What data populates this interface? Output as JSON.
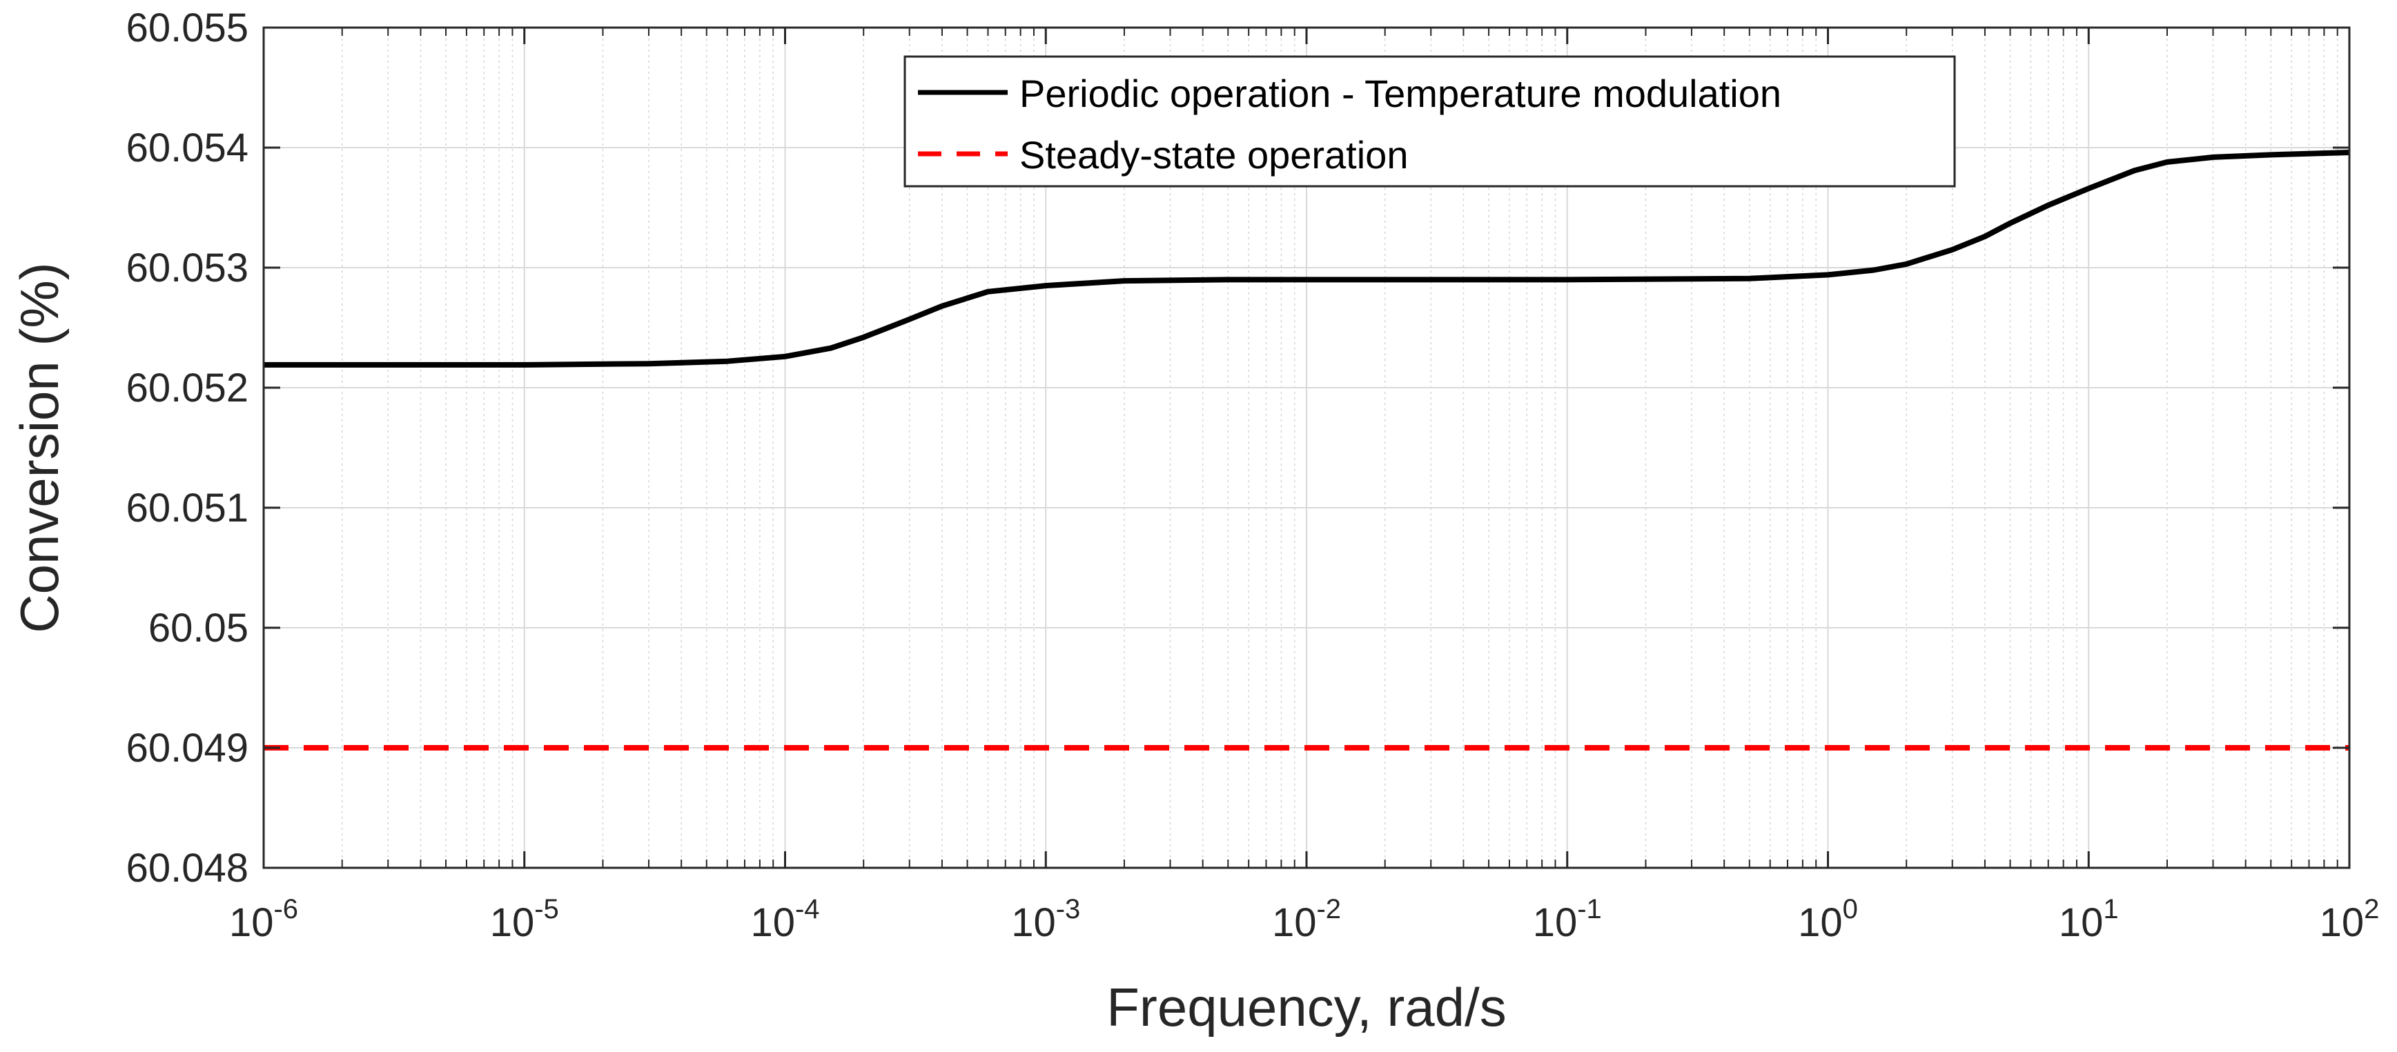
{
  "chart_data": {
    "type": "line",
    "title": "",
    "xlabel": "Frequency, rad/s",
    "ylabel": "Conversion (%)",
    "xscale": "log",
    "xlim": [
      1e-06,
      100
    ],
    "ylim": [
      60.048,
      60.055
    ],
    "grid": true,
    "legend_location": "top-right",
    "x_ticks": [
      {
        "base": "10",
        "exp": "-6",
        "value": 1e-06
      },
      {
        "base": "10",
        "exp": "-5",
        "value": 1e-05
      },
      {
        "base": "10",
        "exp": "-4",
        "value": 0.0001
      },
      {
        "base": "10",
        "exp": "-3",
        "value": 0.001
      },
      {
        "base": "10",
        "exp": "-2",
        "value": 0.01
      },
      {
        "base": "10",
        "exp": "-1",
        "value": 0.1
      },
      {
        "base": "10",
        "exp": "0",
        "value": 1
      },
      {
        "base": "10",
        "exp": "1",
        "value": 10
      },
      {
        "base": "10",
        "exp": "2",
        "value": 100
      }
    ],
    "y_ticks": [
      {
        "label": "60.055",
        "value": 60.055
      },
      {
        "label": "60.054",
        "value": 60.054
      },
      {
        "label": "60.053",
        "value": 60.053
      },
      {
        "label": "60.052",
        "value": 60.052
      },
      {
        "label": "60.051",
        "value": 60.051
      },
      {
        "label": "60.05",
        "value": 60.05
      },
      {
        "label": "60.049",
        "value": 60.049
      },
      {
        "label": "60.048",
        "value": 60.048
      }
    ],
    "series": [
      {
        "name": "Periodic operation - Temperature modulation",
        "color": "#000000",
        "style": "solid",
        "x": [
          1e-06,
          1e-05,
          3e-05,
          6e-05,
          0.0001,
          0.00015,
          0.0002,
          0.0003,
          0.0004,
          0.0006,
          0.001,
          0.002,
          0.005,
          0.01,
          0.1,
          0.5,
          1,
          1.5,
          2,
          3,
          4,
          5,
          7,
          10,
          15,
          20,
          30,
          50,
          100
        ],
        "y": [
          60.05219,
          60.05219,
          60.0522,
          60.05222,
          60.05226,
          60.05233,
          60.05242,
          60.05257,
          60.05268,
          60.0528,
          60.05285,
          60.05289,
          60.0529,
          60.0529,
          60.0529,
          60.05291,
          60.05294,
          60.05298,
          60.05303,
          60.05315,
          60.05326,
          60.05337,
          60.05352,
          60.05366,
          60.05381,
          60.05388,
          60.05392,
          60.05394,
          60.05396
        ]
      },
      {
        "name": "Steady-state operation",
        "color": "#ff0000",
        "style": "dashed",
        "x": [
          1e-06,
          100
        ],
        "y": [
          60.049,
          60.049
        ]
      }
    ]
  }
}
